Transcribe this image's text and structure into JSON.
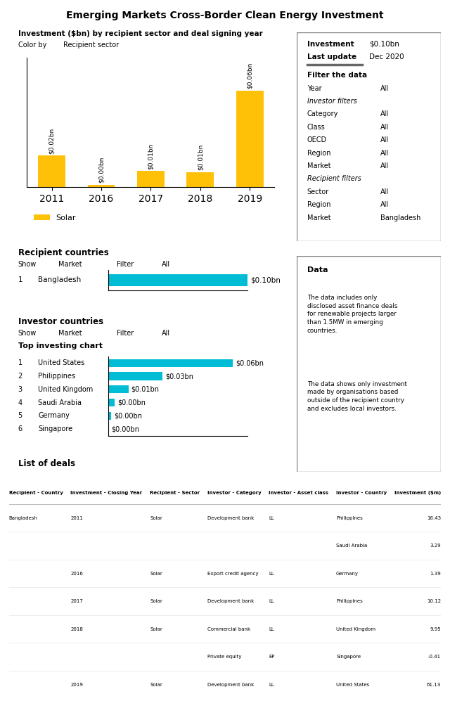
{
  "chart_data": [
    {
      "type": "bar",
      "title": "Emerging Markets Cross-Border Clean Energy Investment",
      "subtitle": "Investment ($bn) by recipient sector and deal signing year",
      "annotations": [
        "Color by",
        "Recipient sector"
      ],
      "categories": [
        "2011",
        "2016",
        "2017",
        "2018",
        "2019"
      ],
      "series": [
        {
          "name": "Solar",
          "color": "#FFC107",
          "values": [
            0.02,
            0.00139,
            0.01012,
            0.00954,
            0.06113
          ],
          "value_labels": [
            "$0.02bn",
            "$0.00bn",
            "$0.01bn",
            "$0.01bn",
            "$0.06bn"
          ]
        }
      ],
      "ylim": [
        0,
        0.082
      ],
      "data_labels": true,
      "tick_labels": "x",
      "legend": "lower left"
    },
    {
      "type": "table",
      "rows": [
        [
          "Investment",
          "$0.10bn"
        ],
        [
          "Last update",
          "Dec 2020"
        ]
      ]
    },
    {
      "type": "table",
      "title": "Filter the data",
      "rows": [
        [
          "Year",
          "All"
        ],
        [
          "Investor filters"
        ],
        [
          "Category",
          "All"
        ],
        [
          "Class",
          "All"
        ],
        [
          "OECD",
          "All"
        ],
        [
          "Region",
          "All"
        ],
        [
          "Market",
          "All"
        ],
        [
          "Recipient filters"
        ],
        [
          "Sector",
          "All"
        ],
        [
          "Region",
          "All"
        ],
        [
          "Market",
          "Bangladesh"
        ]
      ]
    },
    {
      "type": "text",
      "title": "Data",
      "annotations": [
        "The data includes only\ndisclosed asset finance deals\nfor renewable projects larger\nthan 1.5MW in emerging\ncountries.",
        "The data shows only investment\nmade by organisations based\noutside of the recipient country\nand excludes local investors."
      ]
    },
    {
      "type": "bar",
      "orientation": "horizontal",
      "title": "Recipient countries",
      "annotations": [
        "Show",
        "Market",
        "Filter",
        "All"
      ],
      "ranks": [
        "1"
      ],
      "categories": [
        "Bangladesh"
      ],
      "values": [
        0.1
      ],
      "value_labels": [
        "$0.10bn"
      ],
      "color": "#00BCD4",
      "xlim": [
        0,
        0.1
      ],
      "data_labels": true,
      "tick_labels": false
    },
    {
      "type": "bar",
      "orientation": "horizontal",
      "title": "Investor countries",
      "subtitle": "Top investing chart",
      "annotations": [
        "Show",
        "Market",
        "Filter",
        "All"
      ],
      "ranks": [
        "1",
        "2",
        "3",
        "4",
        "5",
        "6"
      ],
      "categories": [
        "United States",
        "Philippines",
        "United Kingdom",
        "Saudi Arabia",
        "Germany",
        "Singapore"
      ],
      "values": [
        0.06113,
        0.02655,
        0.00995,
        0.00329,
        0.00139,
        0.0
      ],
      "value_labels": [
        "$0.06bn",
        "$0.03bn",
        "$0.01bn",
        "$0.00bn",
        "$0.00bn",
        "$0.00bn"
      ],
      "color": "#00BCD4",
      "xlim": [
        0,
        0.06825
      ],
      "data_labels": true,
      "tick_labels": false
    },
    {
      "type": "table",
      "title": "List of deals",
      "columns": [
        "Recipient - Country",
        "Investment - Closing Year",
        "Recipient - Sector",
        "Investor - Category",
        "Investor - Asset class",
        "Investor - Country",
        "Investment ($m)"
      ],
      "rows": [
        [
          "Bangladesh",
          "2011",
          "Solar",
          "Development bank",
          "LL",
          "Philippines",
          "16.43"
        ],
        [
          null,
          null,
          null,
          null,
          null,
          "Saudi Arabia",
          "3.29"
        ],
        [
          null,
          "2016",
          "Solar",
          "Export credit agency",
          "LL",
          "Germany",
          "1.39"
        ],
        [
          null,
          "2017",
          "Solar",
          "Development bank",
          "LL",
          "Philippines",
          "10.12"
        ],
        [
          null,
          "2018",
          "Solar",
          "Commercial bank",
          "LL",
          "United Kingdom",
          "9.95"
        ],
        [
          null,
          null,
          null,
          "Private equity",
          "EP",
          "Singapore",
          "-0.41"
        ],
        [
          null,
          "2019",
          "Solar",
          "Development bank",
          "LL",
          "United States",
          "61.13"
        ]
      ]
    }
  ]
}
